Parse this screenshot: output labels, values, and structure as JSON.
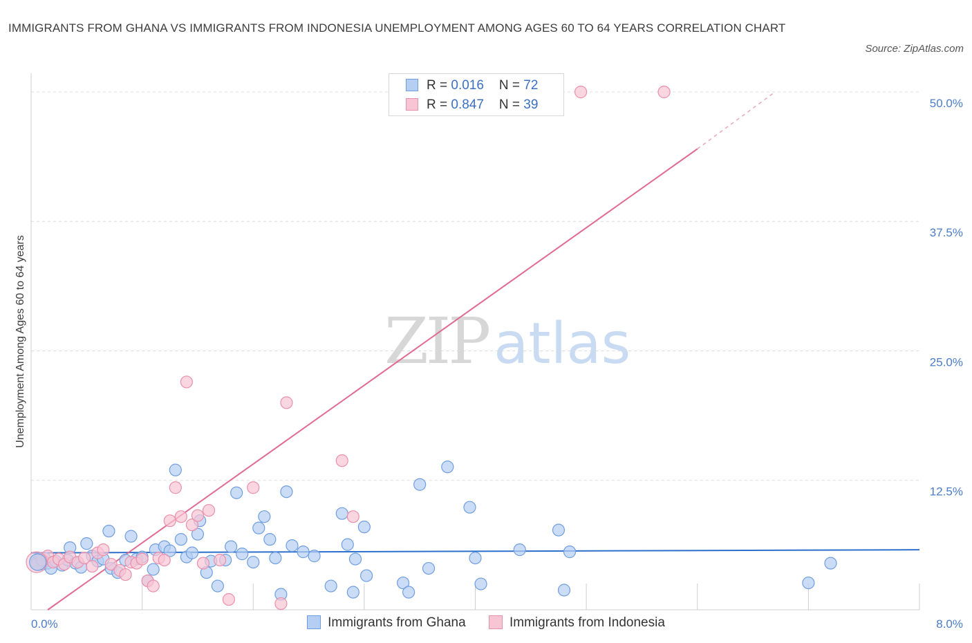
{
  "title": "IMMIGRANTS FROM GHANA VS IMMIGRANTS FROM INDONESIA UNEMPLOYMENT AMONG AGES 60 TO 64 YEARS CORRELATION CHART",
  "source": "Source: ZipAtlas.com",
  "watermark": {
    "zip": "ZIP",
    "atlas": "atlas"
  },
  "legend_top": [
    {
      "r_label": "R = ",
      "r_value": "0.016",
      "n_label": "N = ",
      "n_value": "72"
    },
    {
      "r_label": "R = ",
      "r_value": "0.847",
      "n_label": "N = ",
      "n_value": "39"
    }
  ],
  "chart_data": {
    "type": "scatter",
    "title": "IMMIGRANTS FROM GHANA VS IMMIGRANTS FROM INDONESIA UNEMPLOYMENT AMONG AGES 60 TO 64 YEARS CORRELATION CHART",
    "xlabel": "",
    "ylabel": "Unemployment Among Ages 60 to 64 years",
    "xlim": [
      0,
      8
    ],
    "ylim": [
      0,
      50
    ],
    "x_tick_labels": [
      {
        "value": 0,
        "label": "0.0%"
      },
      {
        "value": 8,
        "label": "8.0%"
      }
    ],
    "y_tick_labels": [
      {
        "value": 12.5,
        "label": "12.5%"
      },
      {
        "value": 25,
        "label": "25.0%"
      },
      {
        "value": 37.5,
        "label": "37.5%"
      },
      {
        "value": 50,
        "label": "50.0%"
      }
    ],
    "grid": true,
    "series": [
      {
        "name": "Immigrants from Ghana",
        "color": "#6f9ee0",
        "fill": "#b5cff2",
        "r": 0.016,
        "n": 72,
        "trend": {
          "x": [
            0,
            8
          ],
          "y": [
            5.5,
            5.8
          ]
        },
        "points": [
          [
            0.05,
            4.6
          ],
          [
            0.08,
            4.9
          ],
          [
            0.1,
            4.4
          ],
          [
            0.12,
            5.0
          ],
          [
            0.15,
            4.5
          ],
          [
            0.18,
            4.0
          ],
          [
            0.22,
            4.7
          ],
          [
            0.28,
            4.3
          ],
          [
            0.33,
            4.8
          ],
          [
            0.35,
            6.0
          ],
          [
            0.4,
            4.5
          ],
          [
            0.45,
            4.1
          ],
          [
            0.5,
            6.4
          ],
          [
            0.55,
            5.2
          ],
          [
            0.6,
            4.7
          ],
          [
            0.65,
            4.9
          ],
          [
            0.7,
            7.6
          ],
          [
            0.72,
            4.0
          ],
          [
            0.78,
            3.6
          ],
          [
            0.85,
            4.8
          ],
          [
            0.9,
            7.1
          ],
          [
            0.95,
            4.9
          ],
          [
            1.0,
            5.1
          ],
          [
            1.05,
            2.8
          ],
          [
            1.1,
            3.9
          ],
          [
            1.12,
            5.8
          ],
          [
            1.2,
            6.1
          ],
          [
            1.25,
            5.7
          ],
          [
            1.3,
            13.5
          ],
          [
            1.35,
            6.8
          ],
          [
            1.4,
            5.1
          ],
          [
            1.45,
            5.5
          ],
          [
            1.5,
            7.3
          ],
          [
            1.52,
            8.6
          ],
          [
            1.58,
            3.6
          ],
          [
            1.62,
            4.7
          ],
          [
            1.68,
            2.3
          ],
          [
            1.75,
            4.8
          ],
          [
            1.8,
            6.1
          ],
          [
            1.85,
            11.3
          ],
          [
            1.9,
            5.4
          ],
          [
            2.0,
            4.6
          ],
          [
            2.05,
            7.9
          ],
          [
            2.1,
            9.0
          ],
          [
            2.15,
            6.8
          ],
          [
            2.2,
            5.0
          ],
          [
            2.25,
            1.5
          ],
          [
            2.3,
            11.4
          ],
          [
            2.35,
            6.2
          ],
          [
            2.45,
            5.6
          ],
          [
            2.55,
            5.2
          ],
          [
            2.7,
            2.3
          ],
          [
            2.8,
            9.3
          ],
          [
            2.85,
            6.3
          ],
          [
            2.9,
            1.7
          ],
          [
            2.92,
            4.9
          ],
          [
            3.0,
            8.0
          ],
          [
            3.02,
            3.3
          ],
          [
            3.35,
            2.6
          ],
          [
            3.4,
            1.7
          ],
          [
            3.5,
            12.1
          ],
          [
            3.58,
            4.0
          ],
          [
            3.75,
            13.8
          ],
          [
            3.95,
            9.9
          ],
          [
            4.0,
            5.0
          ],
          [
            4.05,
            2.5
          ],
          [
            4.4,
            5.8
          ],
          [
            4.75,
            7.7
          ],
          [
            4.8,
            1.9
          ],
          [
            4.85,
            5.6
          ],
          [
            7.0,
            2.6
          ],
          [
            7.2,
            4.5
          ]
        ]
      },
      {
        "name": "Immigrants from Indonesia",
        "color": "#ea8fab",
        "fill": "#f8c5d4",
        "r": 0.847,
        "n": 39,
        "trend": {
          "x": [
            0.15,
            6.0
          ],
          "y": [
            0.0,
            44.5
          ],
          "dashed_to": {
            "x": 6.7,
            "y": 50.0
          }
        },
        "points": [
          [
            0.05,
            4.4
          ],
          [
            0.1,
            4.8
          ],
          [
            0.15,
            5.2
          ],
          [
            0.2,
            4.6
          ],
          [
            0.25,
            4.9
          ],
          [
            0.3,
            4.4
          ],
          [
            0.35,
            5.1
          ],
          [
            0.42,
            4.6
          ],
          [
            0.48,
            5.0
          ],
          [
            0.55,
            4.2
          ],
          [
            0.6,
            5.5
          ],
          [
            0.65,
            5.8
          ],
          [
            0.72,
            4.4
          ],
          [
            0.8,
            3.8
          ],
          [
            0.85,
            3.4
          ],
          [
            0.9,
            4.6
          ],
          [
            0.95,
            4.5
          ],
          [
            1.0,
            4.9
          ],
          [
            1.05,
            2.8
          ],
          [
            1.1,
            2.3
          ],
          [
            1.15,
            5.0
          ],
          [
            1.2,
            4.8
          ],
          [
            1.25,
            8.6
          ],
          [
            1.3,
            11.8
          ],
          [
            1.35,
            9.0
          ],
          [
            1.45,
            8.2
          ],
          [
            1.5,
            9.1
          ],
          [
            1.55,
            4.5
          ],
          [
            1.6,
            9.6
          ],
          [
            1.7,
            4.8
          ],
          [
            1.78,
            1.0
          ],
          [
            2.0,
            11.8
          ],
          [
            2.25,
            0.6
          ],
          [
            2.3,
            20.0
          ],
          [
            2.8,
            14.4
          ],
          [
            2.9,
            9.0
          ],
          [
            4.95,
            50.0
          ],
          [
            5.7,
            50.0
          ],
          [
            1.4,
            22.0
          ]
        ]
      }
    ]
  }
}
